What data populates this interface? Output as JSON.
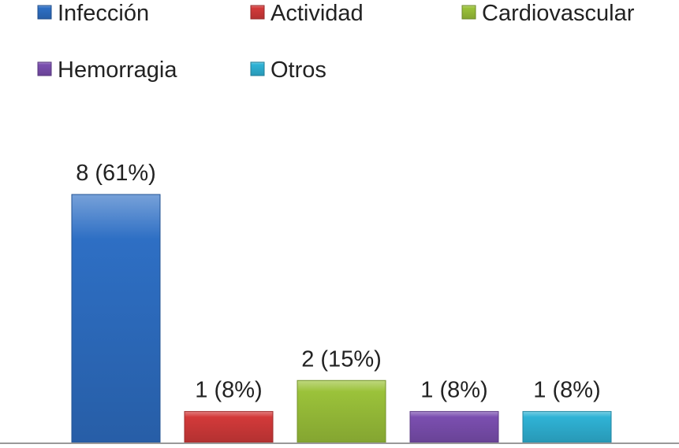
{
  "chart_data": {
    "type": "bar",
    "categories": [
      "Infección",
      "Actividad",
      "Cardiovascular",
      "Hemorragia",
      "Otros"
    ],
    "values": [
      8,
      1,
      2,
      1,
      1
    ],
    "data_labels": [
      "8 (61%)",
      "1 (8%)",
      "2 (15%)",
      "1 (8%)",
      "1 (8%)"
    ],
    "colors": [
      "#2e6fc4",
      "#d33a3a",
      "#9bc23a",
      "#7b4fb0",
      "#2fb3d6"
    ],
    "legend": {
      "placement": "top",
      "entries": [
        "Infección",
        "Actividad",
        "Cardiovascular",
        "Hemorragia",
        "Otros"
      ]
    },
    "ylim": [
      0,
      8
    ],
    "grid": false,
    "axis_line_color": "#999999"
  }
}
